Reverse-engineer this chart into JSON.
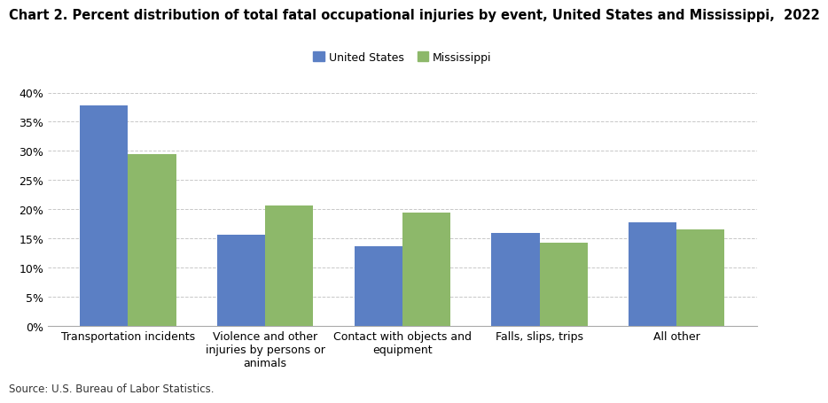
{
  "title": "Chart 2. Percent distribution of total fatal occupational injuries by event, United States and Mississippi,  2022",
  "categories": [
    "Transportation incidents",
    "Violence and other\ninjuries by persons or\nanimals",
    "Contact with objects and\nequipment",
    "Falls, slips, trips",
    "All other"
  ],
  "us_values": [
    37.8,
    15.6,
    13.6,
    15.9,
    17.7
  ],
  "ms_values": [
    29.5,
    20.6,
    19.4,
    14.2,
    16.6
  ],
  "us_color": "#5b7fc4",
  "ms_color": "#8db86a",
  "ylim": [
    0,
    40
  ],
  "yticks": [
    0,
    5,
    10,
    15,
    20,
    25,
    30,
    35,
    40
  ],
  "ytick_labels": [
    "0%",
    "5%",
    "10%",
    "15%",
    "20%",
    "25%",
    "30%",
    "35%",
    "40%"
  ],
  "legend_labels": [
    "United States",
    "Mississippi"
  ],
  "source": "Source: U.S. Bureau of Labor Statistics.",
  "background_color": "#ffffff",
  "grid_color": "#c8c8c8",
  "title_fontsize": 10.5,
  "tick_fontsize": 9,
  "bar_width": 0.35
}
